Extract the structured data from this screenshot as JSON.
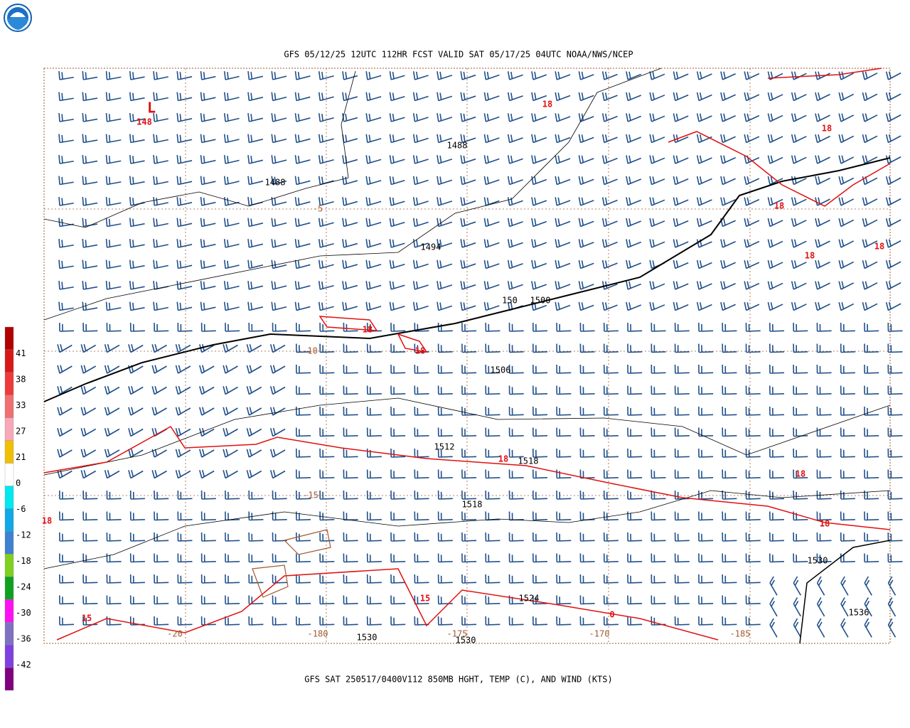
{
  "header": {
    "title": "GFS 05/12/25 12UTC 112HR FCST VALID SAT 05/17/25 04UTC NOAA/NWS/NCEP"
  },
  "footer": {
    "caption": "GFS SAT 250517/0400V112 850MB HGHT, TEMP (C), AND WIND (KTS)"
  },
  "colorbar": {
    "labels": [
      "41",
      "38",
      "33",
      "27",
      "21",
      "0",
      "-6",
      "-12",
      "-18",
      "-24",
      "-30",
      "-36",
      "-42"
    ],
    "colors": [
      "#b00000",
      "#d81818",
      "#ee3a3a",
      "#f07070",
      "#f8a8b8",
      "#f0c000",
      "#ffffff",
      "#00e8f0",
      "#10a8e8",
      "#4080d0",
      "#80d020",
      "#10a020",
      "#ff10f0",
      "#8070c0",
      "#8040e0",
      "#800080"
    ]
  },
  "contour_labels": {
    "height": [
      "1488",
      "1488",
      "1494",
      "150",
      "1500",
      "1506",
      "1512",
      "1518",
      "1518",
      "1524",
      "1530",
      "1530",
      "1530",
      "1536"
    ],
    "temp": [
      "L",
      "148",
      "18",
      "18",
      "18",
      "18",
      "18",
      "18",
      "18",
      "18",
      "18",
      "18",
      "18",
      "15",
      "15",
      "0"
    ],
    "isotherm": [
      "-5",
      "-10",
      "-15",
      "-20",
      "-180",
      "-175",
      "-170",
      "-185"
    ]
  }
}
